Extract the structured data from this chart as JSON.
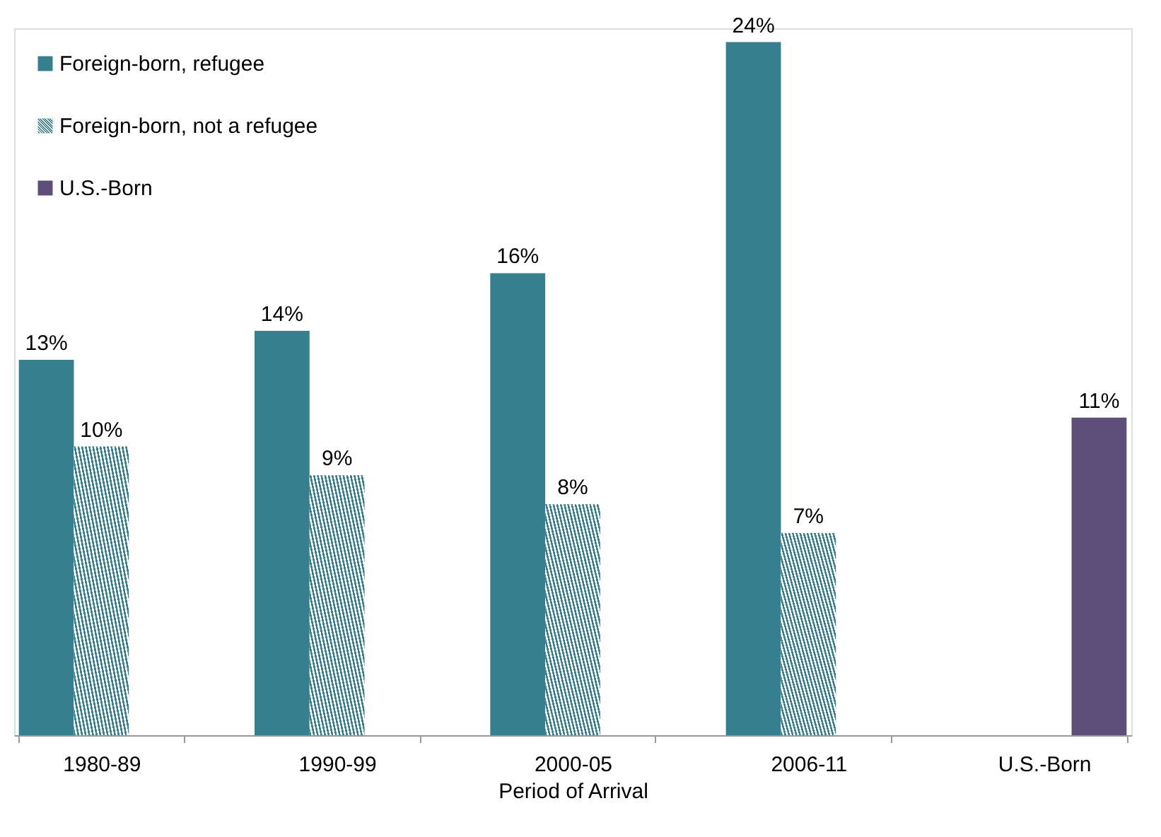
{
  "chart_data": {
    "type": "bar",
    "xlabel": "Period of Arrival",
    "categories": [
      "1980-89",
      "1990-99",
      "2000-05",
      "2006-11",
      "U.S.-Born"
    ],
    "series": [
      {
        "name": "Foreign-born, refugee",
        "color": "#357f8f",
        "values": [
          13,
          14,
          16,
          24,
          null
        ],
        "value_labels": [
          "13%",
          "14%",
          "16%",
          "24%",
          null
        ]
      },
      {
        "name": "Foreign-born, not a refugee",
        "color": "#357f8f",
        "values": [
          10,
          9,
          8,
          7,
          null
        ],
        "value_labels": [
          "10%",
          "9%",
          "8%",
          "7%",
          null
        ]
      },
      {
        "name": "U.S.-Born",
        "color": "#5e4f7a",
        "values": [
          null,
          null,
          null,
          null,
          11
        ],
        "value_labels": [
          null,
          null,
          null,
          null,
          "11%"
        ]
      }
    ],
    "legend": "top left",
    "grid": false
  }
}
